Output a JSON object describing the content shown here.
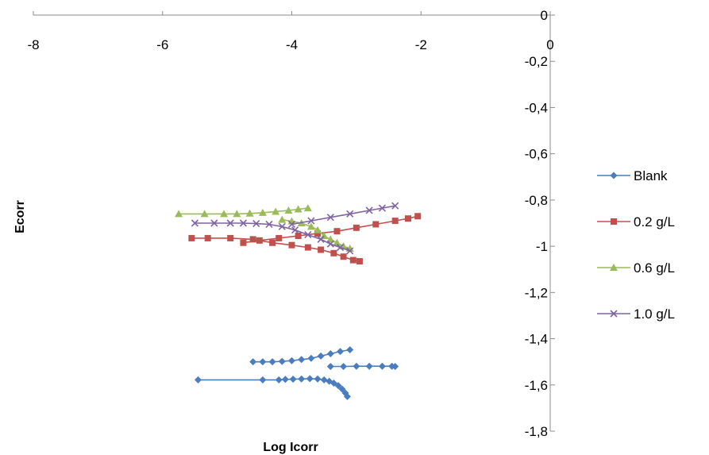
{
  "chart_data": {
    "type": "scatter",
    "title": "",
    "xlabel": "Log Icorr",
    "ylabel": "Ecorr",
    "xlim": [
      -8,
      0
    ],
    "ylim": [
      -1.8,
      0
    ],
    "x_ticks": [
      "-8",
      "-6",
      "-4",
      "-2",
      "0"
    ],
    "y_ticks": [
      "0",
      "-0,2",
      "-0,4",
      "-0,6",
      "-0,8",
      "-1",
      "-1,2",
      "-1,4",
      "-1,6",
      "-1,8"
    ],
    "grid": false,
    "legend_position": "right",
    "series": [
      {
        "name": "Blank",
        "color": "#4a7dbf",
        "marker": "diamond",
        "branches": [
          [
            [
              -5.45,
              -1.578
            ],
            [
              -4.45,
              -1.578
            ],
            [
              -4.2,
              -1.578
            ],
            [
              -4.1,
              -1.576
            ],
            [
              -3.98,
              -1.575
            ],
            [
              -3.85,
              -1.574
            ],
            [
              -3.72,
              -1.573
            ],
            [
              -3.6,
              -1.574
            ],
            [
              -3.5,
              -1.578
            ],
            [
              -3.42,
              -1.584
            ],
            [
              -3.35,
              -1.592
            ],
            [
              -3.28,
              -1.603
            ],
            [
              -3.22,
              -1.618
            ],
            [
              -3.17,
              -1.635
            ],
            [
              -3.14,
              -1.65
            ]
          ],
          [
            [
              -3.4,
              -1.52
            ],
            [
              -3.2,
              -1.52
            ],
            [
              -3.0,
              -1.519
            ],
            [
              -2.8,
              -1.519
            ],
            [
              -2.6,
              -1.519
            ],
            [
              -2.45,
              -1.519
            ],
            [
              -2.4,
              -1.52
            ]
          ],
          [
            [
              -4.6,
              -1.5
            ],
            [
              -4.45,
              -1.5
            ],
            [
              -4.3,
              -1.5
            ],
            [
              -4.15,
              -1.498
            ],
            [
              -4.0,
              -1.495
            ],
            [
              -3.85,
              -1.49
            ],
            [
              -3.7,
              -1.485
            ],
            [
              -3.55,
              -1.475
            ],
            [
              -3.4,
              -1.465
            ],
            [
              -3.25,
              -1.455
            ],
            [
              -3.1,
              -1.448
            ]
          ]
        ]
      },
      {
        "name": "0.2 g/L",
        "color": "#c0504d",
        "marker": "square",
        "branches": [
          [
            [
              -5.55,
              -0.965
            ],
            [
              -5.3,
              -0.965
            ],
            [
              -4.95,
              -0.965
            ],
            [
              -4.6,
              -0.97
            ],
            [
              -4.3,
              -0.985
            ],
            [
              -4.0,
              -0.995
            ],
            [
              -3.75,
              -1.005
            ],
            [
              -3.55,
              -1.015
            ],
            [
              -3.35,
              -1.03
            ],
            [
              -3.2,
              -1.045
            ],
            [
              -3.05,
              -1.06
            ],
            [
              -2.95,
              -1.065
            ]
          ],
          [
            [
              -4.75,
              -0.985
            ],
            [
              -4.5,
              -0.975
            ],
            [
              -4.2,
              -0.965
            ],
            [
              -3.9,
              -0.955
            ],
            [
              -3.6,
              -0.945
            ],
            [
              -3.3,
              -0.935
            ],
            [
              -3.0,
              -0.92
            ],
            [
              -2.7,
              -0.905
            ],
            [
              -2.4,
              -0.89
            ],
            [
              -2.2,
              -0.88
            ],
            [
              -2.05,
              -0.87
            ]
          ]
        ]
      },
      {
        "name": "0.6 g/L",
        "color": "#9bbb59",
        "marker": "triangle",
        "branches": [
          [
            [
              -5.75,
              -0.86
            ],
            [
              -5.35,
              -0.86
            ],
            [
              -5.05,
              -0.86
            ],
            [
              -4.85,
              -0.86
            ],
            [
              -4.65,
              -0.858
            ],
            [
              -4.45,
              -0.855
            ],
            [
              -4.25,
              -0.85
            ],
            [
              -4.05,
              -0.845
            ],
            [
              -3.9,
              -0.84
            ],
            [
              -3.75,
              -0.835
            ]
          ],
          [
            [
              -4.15,
              -0.885
            ],
            [
              -4.0,
              -0.892
            ],
            [
              -3.85,
              -0.9
            ],
            [
              -3.7,
              -0.915
            ],
            [
              -3.6,
              -0.93
            ],
            [
              -3.5,
              -0.955
            ],
            [
              -3.4,
              -0.97
            ],
            [
              -3.3,
              -0.985
            ],
            [
              -3.2,
              -1.0
            ],
            [
              -3.1,
              -1.01
            ]
          ]
        ]
      },
      {
        "name": "1.0  g/L",
        "color": "#8064a2",
        "marker": "x",
        "branches": [
          [
            [
              -5.5,
              -0.9
            ],
            [
              -5.2,
              -0.9
            ],
            [
              -4.95,
              -0.9
            ],
            [
              -4.75,
              -0.9
            ],
            [
              -4.55,
              -0.902
            ],
            [
              -4.35,
              -0.905
            ],
            [
              -4.15,
              -0.915
            ],
            [
              -3.95,
              -0.93
            ],
            [
              -3.75,
              -0.95
            ],
            [
              -3.55,
              -0.97
            ],
            [
              -3.4,
              -0.99
            ],
            [
              -3.25,
              -1.005
            ],
            [
              -3.1,
              -1.02
            ]
          ],
          [
            [
              -4.0,
              -0.905
            ],
            [
              -3.7,
              -0.89
            ],
            [
              -3.4,
              -0.875
            ],
            [
              -3.1,
              -0.86
            ],
            [
              -2.8,
              -0.845
            ],
            [
              -2.6,
              -0.835
            ],
            [
              -2.4,
              -0.825
            ]
          ]
        ]
      }
    ]
  }
}
